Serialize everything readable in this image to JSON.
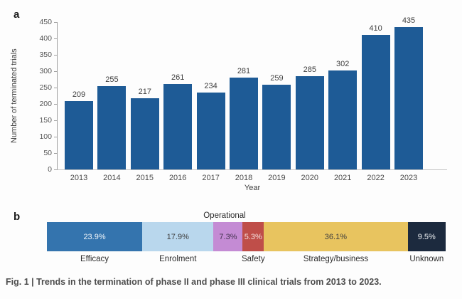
{
  "figure": {
    "panel_a_label": "a",
    "panel_b_label": "b",
    "caption": "Fig. 1 | Trends in the termination of phase II and phase III clinical trials from 2013 to 2023."
  },
  "chart_data": [
    {
      "type": "bar",
      "panel": "a",
      "xlabel": "Year",
      "ylabel": "Number of terminated trials",
      "categories": [
        "2013",
        "2014",
        "2015",
        "2016",
        "2017",
        "2018",
        "2019",
        "2020",
        "2021",
        "2022",
        "2023"
      ],
      "values": [
        209,
        255,
        217,
        261,
        234,
        281,
        259,
        285,
        302,
        410,
        435
      ],
      "ylim": [
        0,
        450
      ],
      "ytick_step": 50,
      "grid": false,
      "legend": false,
      "bar_color": "#1e5b96",
      "value_label_color": "#3f3f3f",
      "axis_color": "#9f9f9f",
      "tick_label_color": "#555555"
    },
    {
      "type": "bar",
      "subtype": "stacked-horizontal",
      "panel": "b",
      "unit": "%",
      "total": 100,
      "segments": [
        {
          "label": "Efficacy",
          "value": 23.9,
          "display": "23.9%",
          "color": "#3474ae",
          "text_color": "#f2f6fa",
          "label_position": "below"
        },
        {
          "label": "Enrolment",
          "value": 17.9,
          "display": "17.9%",
          "color": "#b9d7ed",
          "text_color": "#3d3d3d",
          "label_position": "below"
        },
        {
          "label": "Operational",
          "value": 7.3,
          "display": "7.3%",
          "color": "#c48bd4",
          "text_color": "#43334f",
          "label_position": "above"
        },
        {
          "label": "Safety",
          "value": 5.3,
          "display": "5.3%",
          "color": "#bf4e49",
          "text_color": "#f6e3e1",
          "label_position": "below"
        },
        {
          "label": "Strategy/business",
          "value": 36.1,
          "display": "36.1%",
          "color": "#e8c45f",
          "text_color": "#3d3d3d",
          "label_position": "below"
        },
        {
          "label": "Unknown",
          "value": 9.5,
          "display": "9.5%",
          "color": "#1c2a3e",
          "text_color": "#eef1f4",
          "label_position": "below"
        }
      ]
    }
  ]
}
